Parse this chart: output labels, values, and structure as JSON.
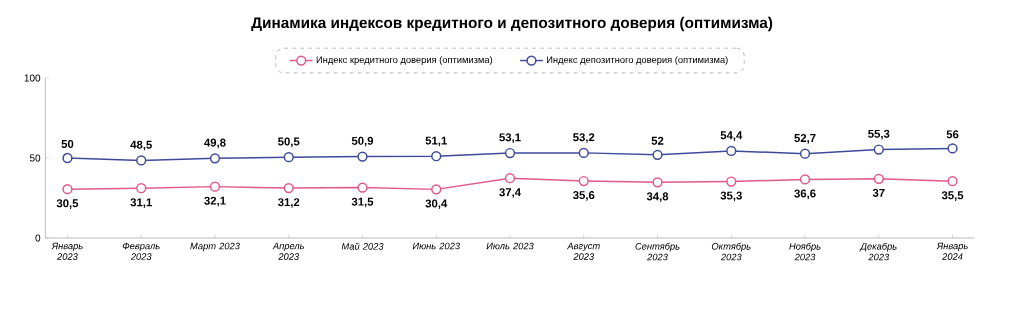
{
  "chart_data": {
    "type": "line",
    "title": "Динамика индексов кредитного и депозитного доверия (оптимизма)",
    "categories": [
      "Январь 2023",
      "Февраль 2023",
      "Март 2023",
      "Апрель 2023",
      "Май 2023",
      "Июнь 2023",
      "Июль 2023",
      "Август 2023",
      "Сентябрь 2023",
      "Октябрь 2023",
      "Ноябрь 2023",
      "Декабрь 2023",
      "Январь 2024"
    ],
    "series": [
      {
        "name": "Индекс кредитного доверия (оптимизма)",
        "color": "#e0588a",
        "values": [
          30.5,
          31.1,
          32.1,
          31.2,
          31.5,
          30.4,
          37.4,
          35.6,
          34.8,
          35.3,
          36.6,
          37,
          35.5
        ],
        "value_labels": [
          "30,5",
          "31,1",
          "32,1",
          "31,2",
          "31,5",
          "30,4",
          "37,4",
          "35,6",
          "34,8",
          "35,3",
          "36,6",
          "37",
          "35,5"
        ]
      },
      {
        "name": "Индекс депозитного доверия (оптимизма)",
        "color": "#3d4b9a",
        "values": [
          50,
          48.5,
          49.8,
          50.5,
          50.9,
          51.1,
          53.1,
          53.2,
          52,
          54.4,
          52.7,
          55.3,
          56
        ],
        "value_labels": [
          "50",
          "48,5",
          "49,8",
          "50,5",
          "50,9",
          "51,1",
          "53,1",
          "53,2",
          "52",
          "54,4",
          "52,7",
          "55,3",
          "56"
        ]
      }
    ],
    "ylim": [
      0,
      100
    ],
    "yticks": [
      0,
      50,
      100
    ],
    "legend": "top",
    "marker": "circle",
    "line_style": "solid"
  }
}
